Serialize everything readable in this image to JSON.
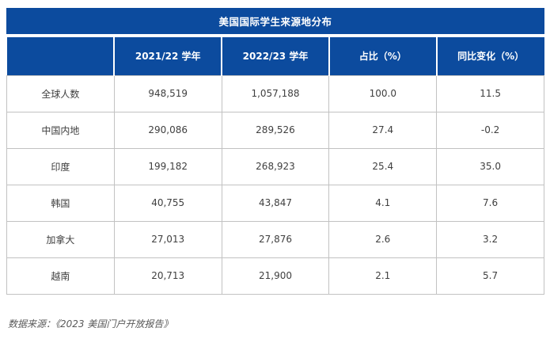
{
  "chart_data": {
    "type": "table",
    "title": "美国国际学生来源地分布",
    "columns": [
      "",
      "2021/22 学年",
      "2022/23 学年",
      "占比（%）",
      "同比变化（%）"
    ],
    "rows": [
      {
        "label": "全球人数",
        "values": [
          "948,519",
          "1,057,188",
          "100.0",
          "11.5"
        ]
      },
      {
        "label": "中国内地",
        "values": [
          "290,086",
          "289,526",
          "27.4",
          "-0.2"
        ]
      },
      {
        "label": "印度",
        "values": [
          "199,182",
          "268,923",
          "25.4",
          "35.0"
        ]
      },
      {
        "label": "韩国",
        "values": [
          "40,755",
          "43,847",
          "4.1",
          "7.6"
        ]
      },
      {
        "label": "加拿大",
        "values": [
          "27,013",
          "27,876",
          "2.6",
          "3.2"
        ]
      },
      {
        "label": "越南",
        "values": [
          "20,713",
          "21,900",
          "2.1",
          "5.7"
        ]
      }
    ]
  },
  "footer": {
    "source": "数据来源：《2023 美国门户开放报告》"
  },
  "colors": {
    "header_blue": "#0C4B9E",
    "header_text": "#FFFFFF",
    "cell_border_gray": "#C2C2C2",
    "cell_text": "#3F3F3F",
    "source_text": "#595959",
    "background": "#FFFFFF"
  }
}
